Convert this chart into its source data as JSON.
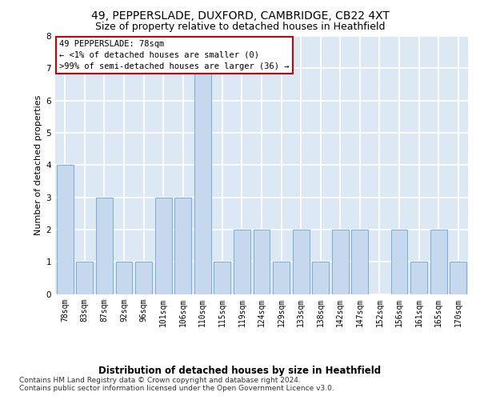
{
  "title1": "49, PEPPERSLADE, DUXFORD, CAMBRIDGE, CB22 4XT",
  "title2": "Size of property relative to detached houses in Heathfield",
  "xlabel": "Distribution of detached houses by size in Heathfield",
  "ylabel": "Number of detached properties",
  "categories": [
    "78sqm",
    "83sqm",
    "87sqm",
    "92sqm",
    "96sqm",
    "101sqm",
    "106sqm",
    "110sqm",
    "115sqm",
    "119sqm",
    "124sqm",
    "129sqm",
    "133sqm",
    "138sqm",
    "142sqm",
    "147sqm",
    "152sqm",
    "156sqm",
    "161sqm",
    "165sqm",
    "170sqm"
  ],
  "values": [
    4,
    1,
    3,
    1,
    1,
    3,
    3,
    7,
    1,
    2,
    2,
    1,
    2,
    1,
    2,
    2,
    0,
    2,
    1,
    2,
    1
  ],
  "bar_color": "#c5d8ed",
  "bar_edge_color": "#7aaed0",
  "annotation_box_text": "49 PEPPERSLADE: 78sqm\n← <1% of detached houses are smaller (0)\n>99% of semi-detached houses are larger (36) →",
  "annotation_box_color": "#ffffff",
  "annotation_box_edge_color": "#cc0000",
  "footer1": "Contains HM Land Registry data © Crown copyright and database right 2024.",
  "footer2": "Contains public sector information licensed under the Open Government Licence v3.0.",
  "ylim": [
    0,
    8
  ],
  "yticks": [
    0,
    1,
    2,
    3,
    4,
    5,
    6,
    7,
    8
  ],
  "plot_bg_color": "#dce9f5",
  "grid_color": "#ffffff",
  "title1_fontsize": 10,
  "title2_fontsize": 9,
  "xlabel_fontsize": 8.5,
  "ylabel_fontsize": 8,
  "tick_fontsize": 7,
  "annot_fontsize": 7.5,
  "footer_fontsize": 6.5
}
